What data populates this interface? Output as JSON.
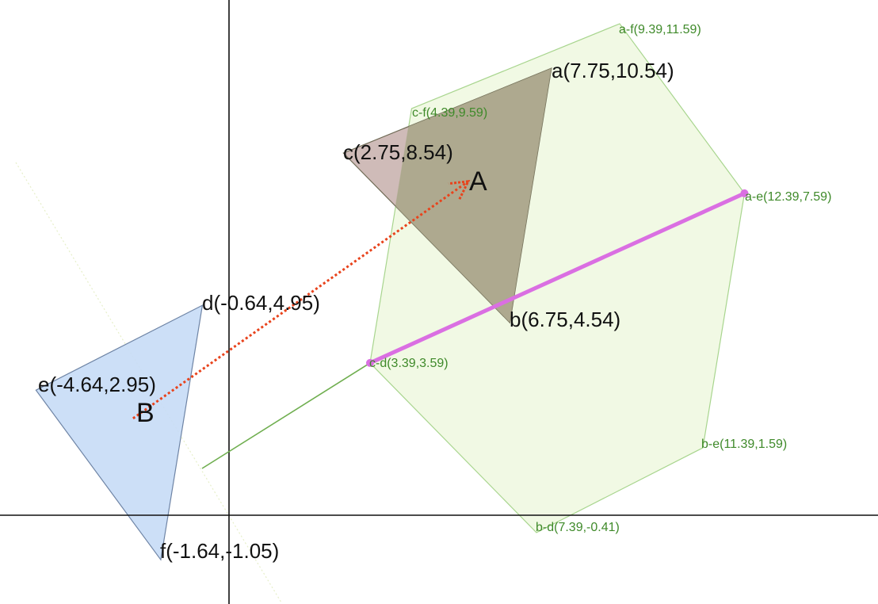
{
  "colors": {
    "triangle_A_fill": "#bfa4a0",
    "triangle_A_overlap": "#a8a68a",
    "triangle_B_fill": "#c6dcf6",
    "minkowski_fill": "#eef8df",
    "minkowski_stroke": "#a8d58e",
    "vector_color": "#e8431c",
    "segment_color": "#da6fe2",
    "green_line": "#6fae4f",
    "axis_color": "#111111",
    "label_green": "#3f8a2a"
  },
  "shapes": {
    "A": {
      "label": "A",
      "points": [
        {
          "id": "a",
          "label": "a(7.75,10.54)",
          "x": 7.75,
          "y": 10.54
        },
        {
          "id": "b",
          "label": "b(6.75,4.54)",
          "x": 6.75,
          "y": 4.54
        },
        {
          "id": "c",
          "label": "c(2.75,8.54)",
          "x": 2.75,
          "y": 8.54
        }
      ]
    },
    "B": {
      "label": "B",
      "points": [
        {
          "id": "d",
          "label": "d(-0.64,4.95)",
          "x": -0.64,
          "y": 4.95
        },
        {
          "id": "e",
          "label": "e(-4.64,2.95)",
          "x": -4.64,
          "y": 2.95
        },
        {
          "id": "f",
          "label": "f(-1.64,-1.05)",
          "x": -1.64,
          "y": -1.05
        }
      ]
    },
    "minkowski_difference": [
      {
        "label": "a-f(9.39,11.59)",
        "x": 9.39,
        "y": 11.59
      },
      {
        "label": "a-e(12.39,7.59)",
        "x": 12.39,
        "y": 7.59
      },
      {
        "label": "b-e(11.39,1.59)",
        "x": 11.39,
        "y": 1.59
      },
      {
        "label": "b-d(7.39,-0.41)",
        "x": 7.39,
        "y": -0.41
      },
      {
        "label": "c-d(3.39,3.59)",
        "x": 3.39,
        "y": 3.59
      },
      {
        "label": "c-f(4.39,9.59)",
        "x": 4.39,
        "y": 9.59
      }
    ]
  }
}
